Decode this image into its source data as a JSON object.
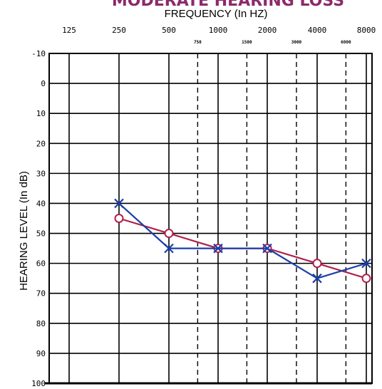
{
  "chart_data": {
    "type": "line",
    "title": "MODERATE HEARING LOSS",
    "xlabel": "FREQUENCY (In HZ)",
    "ylabel": "HEARING LEVEL (In dB)",
    "x_ticks": [
      "125",
      "250",
      "500",
      "1000",
      "2000",
      "4000",
      "8000"
    ],
    "x_minor_ticks": [
      "750",
      "1500",
      "3000",
      "6000"
    ],
    "y_ticks": [
      "-10",
      "0",
      "10",
      "20",
      "30",
      "40",
      "50",
      "60",
      "70",
      "80",
      "90",
      "100"
    ],
    "ylim": [
      -10,
      100
    ],
    "y_inverted": true,
    "grid": true,
    "series": [
      {
        "marker": "circle",
        "color": "#b0204a",
        "x": [
          250,
          500,
          1000,
          2000,
          4000,
          8000
        ],
        "values": [
          45,
          50,
          55,
          55,
          60,
          65
        ]
      },
      {
        "marker": "x",
        "color": "#1a3fa8",
        "x": [
          250,
          500,
          1000,
          2000,
          4000,
          8000
        ],
        "values": [
          40,
          55,
          55,
          55,
          65,
          60
        ]
      }
    ]
  }
}
